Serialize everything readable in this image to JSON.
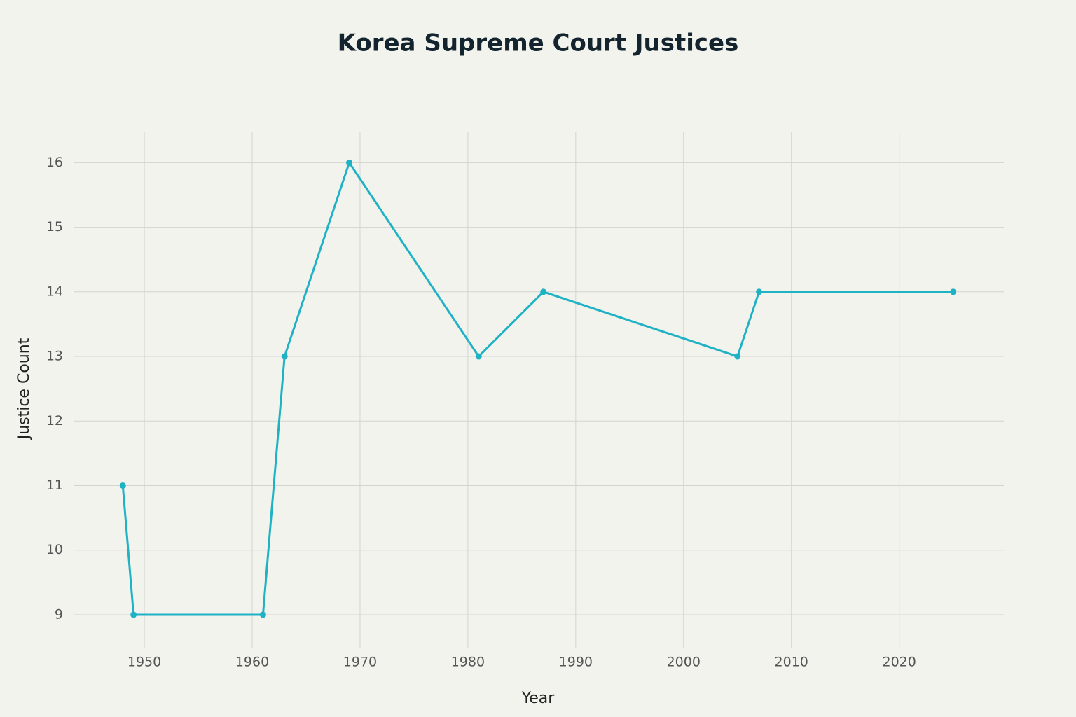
{
  "chart_data": {
    "type": "line",
    "title": "Korea Supreme Court Justices",
    "x_label": "Year",
    "y_label": "Justice Count",
    "x": [
      1948,
      1949,
      1961,
      1963,
      1969,
      1981,
      1987,
      2005,
      2007,
      2025
    ],
    "values": [
      11,
      9,
      9,
      13,
      16,
      13,
      14,
      13,
      14,
      14
    ],
    "color": "#1fb2c5",
    "xlim": [
      1943.5,
      2029.7
    ],
    "xticks": [
      1950,
      1960,
      1970,
      1980,
      1990,
      2000,
      2010,
      2020
    ],
    "ylim": [
      8.49,
      16.47
    ],
    "yticks": [
      9,
      10,
      11,
      12,
      13,
      14,
      15,
      16
    ],
    "grid": true
  }
}
